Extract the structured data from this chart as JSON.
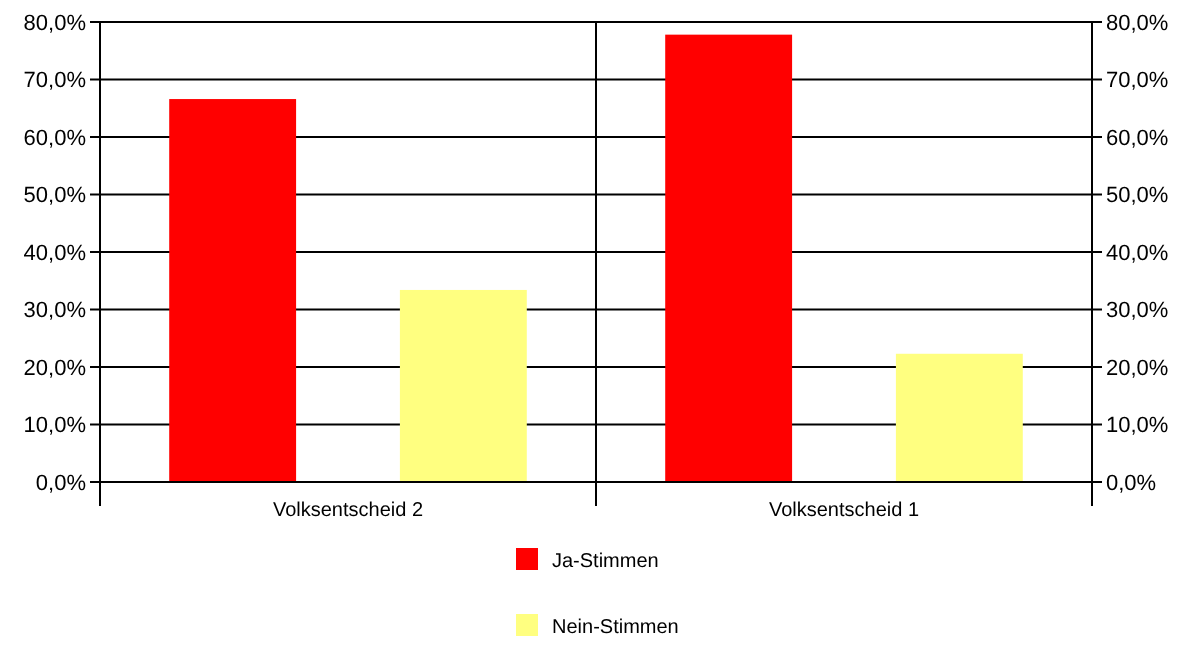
{
  "chart_data": {
    "type": "bar",
    "categories": [
      "Volksentscheid 2",
      "Volksentscheid 1"
    ],
    "series": [
      {
        "name": "Ja-Stimmen",
        "color": "#ff0000",
        "values": [
          66.6,
          77.8
        ]
      },
      {
        "name": "Nein-Stimmen",
        "color": "#ffff80",
        "values": [
          33.4,
          22.3
        ]
      }
    ],
    "ylim": [
      0,
      80
    ],
    "yticks": [
      {
        "value": 0,
        "label": "0,0%"
      },
      {
        "value": 10,
        "label": "10,0%"
      },
      {
        "value": 20,
        "label": "20,0%"
      },
      {
        "value": 30,
        "label": "30,0%"
      },
      {
        "value": 40,
        "label": "40,0%"
      },
      {
        "value": 50,
        "label": "50,0%"
      },
      {
        "value": 60,
        "label": "60,0%"
      },
      {
        "value": 70,
        "label": "70,0%"
      },
      {
        "value": 80,
        "label": "80,0%"
      }
    ],
    "y2lim": [
      0,
      80
    ],
    "y2ticks": [
      {
        "value": 0,
        "label": "0,0%"
      },
      {
        "value": 10,
        "label": "10,0%"
      },
      {
        "value": 20,
        "label": "20,0%"
      },
      {
        "value": 30,
        "label": "30,0%"
      },
      {
        "value": 40,
        "label": "40,0%"
      },
      {
        "value": 50,
        "label": "50,0%"
      },
      {
        "value": 60,
        "label": "60,0%"
      },
      {
        "value": 70,
        "label": "70,0%"
      },
      {
        "value": 80,
        "label": "80,0%"
      }
    ],
    "grid": "y",
    "legend": "bottom"
  }
}
